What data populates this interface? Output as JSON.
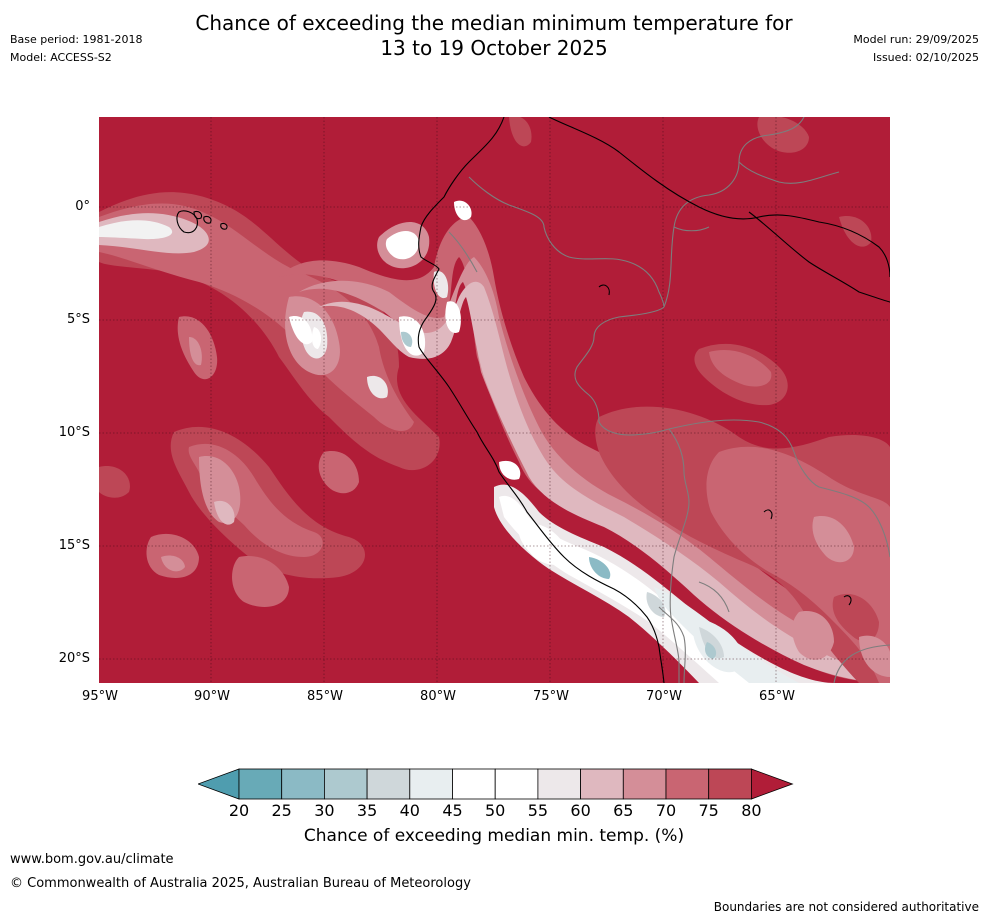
{
  "header": {
    "base_period": "Base period: 1981-2018",
    "model": "Model: ACCESS-S2",
    "model_run": "Model run: 29/09/2025",
    "issued": "Issued: 02/10/2025",
    "title_line1": "Chance of exceeding the median minimum temperature for",
    "title_line2": "13 to 19 October 2025"
  },
  "axes": {
    "y_ticks": [
      "0°",
      "5°S",
      "10°S",
      "15°S",
      "20°S"
    ],
    "x_ticks": [
      "95°W",
      "90°W",
      "85°W",
      "80°W",
      "75°W",
      "70°W",
      "65°W"
    ]
  },
  "colorbar": {
    "ticks": [
      "20",
      "25",
      "30",
      "35",
      "40",
      "45",
      "50",
      "55",
      "60",
      "65",
      "70",
      "75",
      "80"
    ],
    "label": "Chance of exceeding median min. temp. (%)",
    "colors": [
      "#68aab7",
      "#8bbac5",
      "#adc9cf",
      "#cfd7da",
      "#e8eef0",
      "#ffffff",
      "#ffffff",
      "#ede8ea",
      "#dfb8bf",
      "#d48e98",
      "#c96572",
      "#bd4756",
      "#b11d38"
    ],
    "under_color": "#4f9daf"
  },
  "footer": {
    "url": "www.bom.gov.au/climate",
    "copyright": "© Commonwealth of Australia 2025, Australian Bureau of Meteorology",
    "disclaimer": "Boundaries are not considered authoritative"
  }
}
